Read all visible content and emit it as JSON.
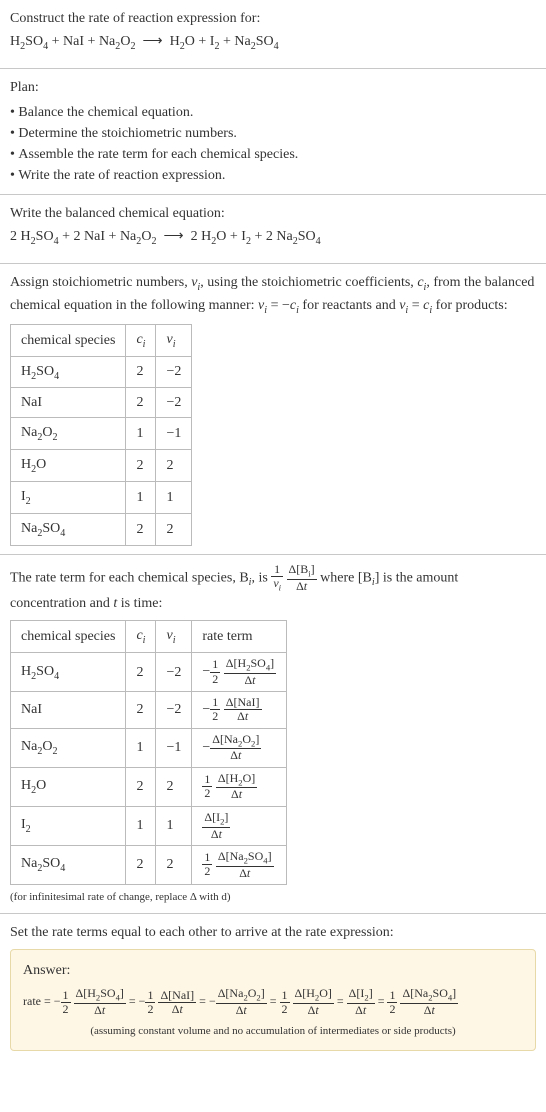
{
  "intro": {
    "prompt": "Construct the rate of reaction expression for:",
    "reactants": [
      "H2SO4",
      "NaI",
      "Na2O2"
    ],
    "products": [
      "H2O",
      "I2",
      "Na2SO4"
    ]
  },
  "plan": {
    "label": "Plan:",
    "items": [
      "Balance the chemical equation.",
      "Determine the stoichiometric numbers.",
      "Assemble the rate term for each chemical species.",
      "Write the rate of reaction expression."
    ]
  },
  "balanced": {
    "label": "Write the balanced chemical equation:",
    "lhs": [
      {
        "coef": "2",
        "sp": "H2SO4"
      },
      {
        "coef": "2",
        "sp": "NaI"
      },
      {
        "coef": "",
        "sp": "Na2O2"
      }
    ],
    "rhs": [
      {
        "coef": "2",
        "sp": "H2O"
      },
      {
        "coef": "",
        "sp": "I2"
      },
      {
        "coef": "2",
        "sp": "Na2SO4"
      }
    ]
  },
  "stoich_intro": {
    "text_prefix": "Assign stoichiometric numbers, ",
    "text_mid1": ", using the stoichiometric coefficients, ",
    "text_mid2": ", from the balanced chemical equation in the following manner: ",
    "react_rule_pre": " = −",
    "react_rule_post": " for reactants and ",
    "prod_rule_pre": " = ",
    "prod_rule_post": " for products:"
  },
  "stoich_table": {
    "headers": [
      "chemical species",
      "ci",
      "νi"
    ],
    "rows": [
      {
        "sp": "H2SO4",
        "c": "2",
        "v": "−2"
      },
      {
        "sp": "NaI",
        "c": "2",
        "v": "−2"
      },
      {
        "sp": "Na2O2",
        "c": "1",
        "v": "−1"
      },
      {
        "sp": "H2O",
        "c": "2",
        "v": "2"
      },
      {
        "sp": "I2",
        "c": "1",
        "v": "1"
      },
      {
        "sp": "Na2SO4",
        "c": "2",
        "v": "2"
      }
    ]
  },
  "rate_intro": {
    "prefix": "The rate term for each chemical species, B",
    "mid1": ", is ",
    "mid2": " where [B",
    "mid3": "] is the amount concentration and ",
    "tvar": "t",
    "suffix": " is time:"
  },
  "rate_table": {
    "headers": [
      "chemical species",
      "ci",
      "νi",
      "rate term"
    ],
    "rows": [
      {
        "sp": "H2SO4",
        "c": "2",
        "v": "−2",
        "sign": "−",
        "frac_num": "1",
        "frac_den": "2",
        "conc": "H2SO4"
      },
      {
        "sp": "NaI",
        "c": "2",
        "v": "−2",
        "sign": "−",
        "frac_num": "1",
        "frac_den": "2",
        "conc": "NaI"
      },
      {
        "sp": "Na2O2",
        "c": "1",
        "v": "−1",
        "sign": "−",
        "frac_num": "",
        "frac_den": "",
        "conc": "Na2O2"
      },
      {
        "sp": "H2O",
        "c": "2",
        "v": "2",
        "sign": "",
        "frac_num": "1",
        "frac_den": "2",
        "conc": "H2O"
      },
      {
        "sp": "I2",
        "c": "1",
        "v": "1",
        "sign": "",
        "frac_num": "",
        "frac_den": "",
        "conc": "I2"
      },
      {
        "sp": "Na2SO4",
        "c": "2",
        "v": "2",
        "sign": "",
        "frac_num": "1",
        "frac_den": "2",
        "conc": "Na2SO4"
      }
    ],
    "note": "(for infinitesimal rate of change, replace Δ with d)"
  },
  "final": {
    "lead": "Set the rate terms equal to each other to arrive at the rate expression:",
    "answer_label": "Answer:",
    "rate_label": "rate = ",
    "note": "(assuming constant volume and no accumulation of intermediates or side products)"
  },
  "colors": {
    "answer_bg": "#fff7e6",
    "answer_border": "#e8d9a8",
    "sep": "#c8c8c8",
    "table_border": "#bbbbbb",
    "text": "#333333"
  }
}
